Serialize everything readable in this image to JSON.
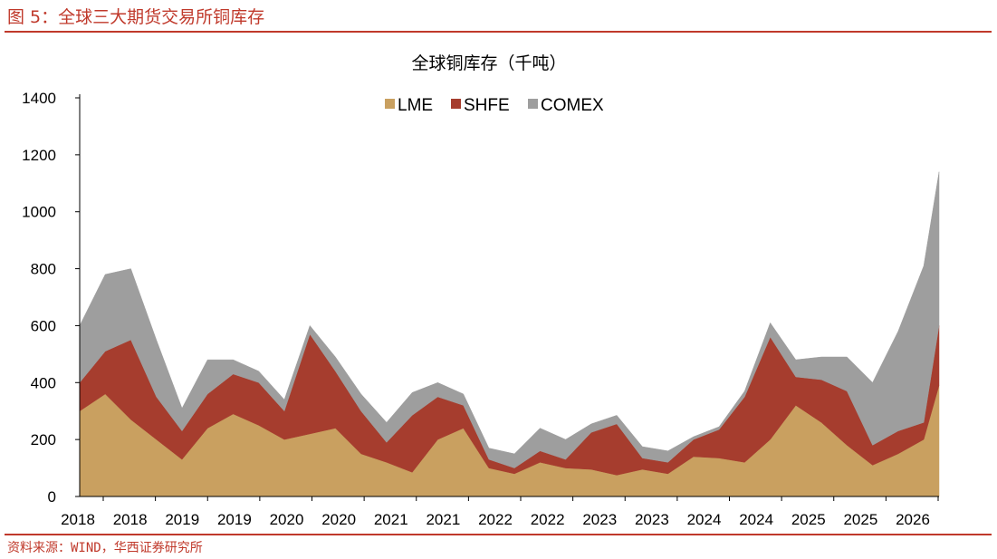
{
  "figure": {
    "title": "图 5：全球三大期货交易所铜库存",
    "source": "资料来源：WIND，华西证券研究所"
  },
  "colors": {
    "LME": "#c9a060",
    "SHFE": "#a63d2e",
    "COMEX": "#9e9e9e",
    "accent": "#c0392b"
  },
  "chart_data": {
    "type": "area",
    "stacked": true,
    "title": "全球铜库存（千吨）",
    "xlabel": "",
    "ylabel": "",
    "ylim": [
      0,
      1400
    ],
    "yticks": [
      0,
      200,
      400,
      600,
      800,
      1000,
      1200,
      1400
    ],
    "xlim": [
      2018.0,
      2026.4
    ],
    "xtick_labels": [
      "2018",
      "2018",
      "2019",
      "2019",
      "2020",
      "2020",
      "2021",
      "2021",
      "2022",
      "2022",
      "2023",
      "2023",
      "2024",
      "2024",
      "2025",
      "2025",
      "2026"
    ],
    "legend": [
      "LME",
      "SHFE",
      "COMEX"
    ],
    "legend_position": "top-center",
    "grid": false,
    "x": [
      2018.0,
      2018.25,
      2018.5,
      2018.75,
      2019.0,
      2019.25,
      2019.5,
      2019.75,
      2020.0,
      2020.25,
      2020.5,
      2020.75,
      2021.0,
      2021.25,
      2021.5,
      2021.75,
      2022.0,
      2022.25,
      2022.5,
      2022.75,
      2023.0,
      2023.25,
      2023.5,
      2023.75,
      2024.0,
      2024.25,
      2024.5,
      2024.75,
      2025.0,
      2025.25,
      2025.5,
      2025.75,
      2026.0,
      2026.25,
      2026.4
    ],
    "series": [
      {
        "name": "LME",
        "values": [
          300,
          360,
          270,
          200,
          130,
          240,
          290,
          250,
          200,
          220,
          240,
          150,
          120,
          85,
          200,
          240,
          100,
          80,
          120,
          100,
          95,
          75,
          95,
          80,
          140,
          135,
          120,
          200,
          320,
          260,
          180,
          110,
          150,
          200,
          390
        ]
      },
      {
        "name": "SHFE",
        "values": [
          100,
          150,
          280,
          150,
          100,
          120,
          140,
          150,
          100,
          350,
          200,
          150,
          70,
          200,
          150,
          80,
          30,
          20,
          40,
          30,
          130,
          180,
          40,
          40,
          60,
          100,
          230,
          360,
          100,
          150,
          190,
          70,
          80,
          60,
          210
        ]
      },
      {
        "name": "COMEX",
        "values": [
          200,
          270,
          250,
          200,
          80,
          120,
          50,
          40,
          40,
          30,
          50,
          60,
          70,
          80,
          50,
          40,
          40,
          50,
          80,
          70,
          30,
          30,
          40,
          40,
          10,
          10,
          20,
          50,
          60,
          80,
          120,
          220,
          350,
          550,
          540
        ]
      }
    ]
  }
}
